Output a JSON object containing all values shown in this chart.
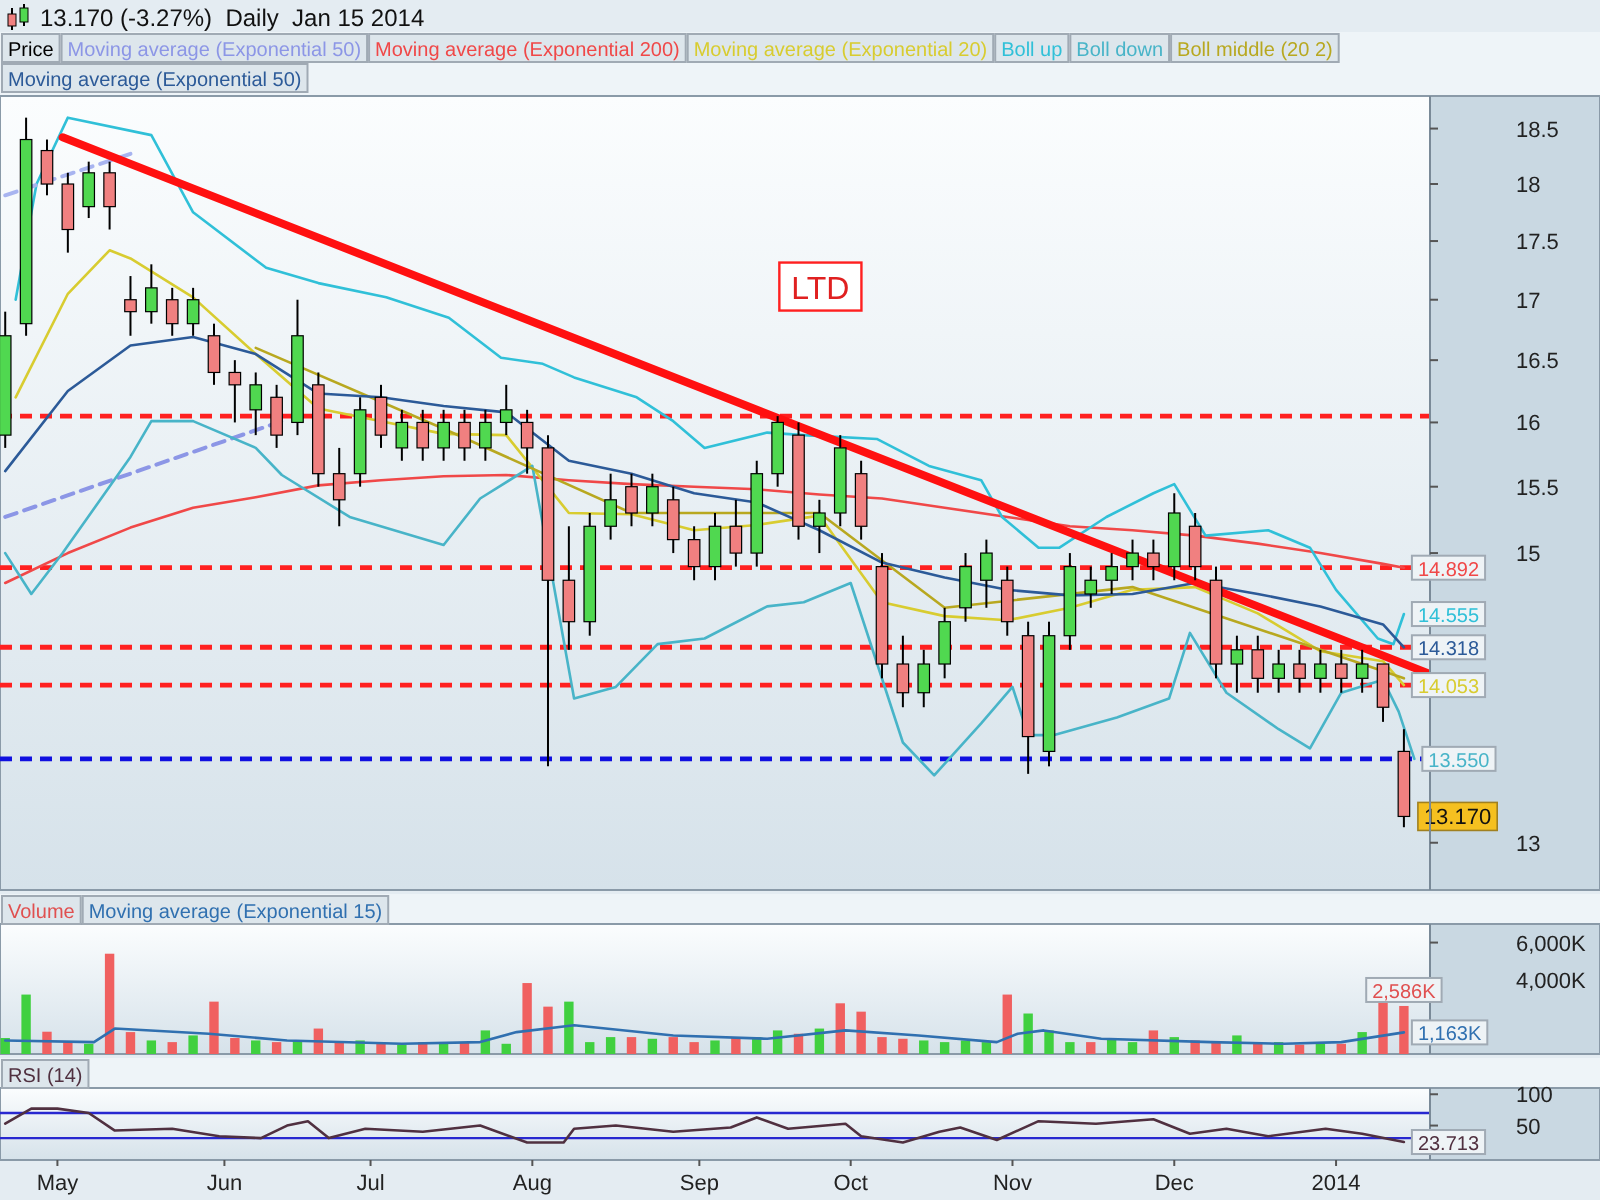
{
  "chart_data": [
    {
      "type": "candlestick",
      "title": "13.170 (-3.27%)  Daily  Jan 15 2014",
      "legend_title": "Price",
      "legend": "top left",
      "log": true,
      "tick_labels": "y",
      "xlim": [
        "2013-04-21",
        "2014-01-20"
      ],
      "ylim": [
        12.7,
        18.8
      ],
      "yticks": [
        13,
        15,
        15.5,
        16,
        16.5,
        17,
        17.5,
        18,
        18.5
      ],
      "x": [
        "2013-04-22",
        "2013-04-26",
        "2013-04-30",
        "2013-05-04",
        "2013-05-08",
        "2013-05-12",
        "2013-05-16",
        "2013-05-20",
        "2013-05-24",
        "2013-05-28",
        "2013-06-01",
        "2013-06-05",
        "2013-06-09",
        "2013-06-13",
        "2013-06-17",
        "2013-06-21",
        "2013-06-25",
        "2013-06-29",
        "2013-07-03",
        "2013-07-07",
        "2013-07-11",
        "2013-07-15",
        "2013-07-19",
        "2013-07-23",
        "2013-07-27",
        "2013-07-31",
        "2013-08-04",
        "2013-08-08",
        "2013-08-12",
        "2013-08-16",
        "2013-08-20",
        "2013-08-24",
        "2013-08-28",
        "2013-09-01",
        "2013-09-05",
        "2013-09-09",
        "2013-09-13",
        "2013-09-17",
        "2013-09-21",
        "2013-09-25",
        "2013-09-29",
        "2013-10-03",
        "2013-10-07",
        "2013-10-11",
        "2013-10-15",
        "2013-10-19",
        "2013-10-23",
        "2013-10-27",
        "2013-10-31",
        "2013-11-04",
        "2013-11-08",
        "2013-11-12",
        "2013-11-16",
        "2013-11-20",
        "2013-11-24",
        "2013-11-28",
        "2013-12-02",
        "2013-12-06",
        "2013-12-10",
        "2013-12-14",
        "2013-12-18",
        "2013-12-22",
        "2013-12-26",
        "2013-12-30",
        "2014-01-03",
        "2014-01-07",
        "2014-01-11",
        "2014-01-15"
      ],
      "ohlc": [
        [
          15.9,
          16.9,
          15.8,
          16.7
        ],
        [
          16.8,
          18.6,
          16.7,
          18.4
        ],
        [
          18.3,
          18.4,
          17.9,
          18.0
        ],
        [
          18.0,
          18.1,
          17.4,
          17.6
        ],
        [
          17.8,
          18.2,
          17.7,
          18.1
        ],
        [
          18.1,
          18.2,
          17.6,
          17.8
        ],
        [
          17.0,
          17.2,
          16.7,
          16.9
        ],
        [
          16.9,
          17.3,
          16.8,
          17.1
        ],
        [
          17.0,
          17.1,
          16.7,
          16.8
        ],
        [
          16.8,
          17.1,
          16.7,
          17.0
        ],
        [
          16.7,
          16.8,
          16.3,
          16.4
        ],
        [
          16.4,
          16.5,
          16.0,
          16.3
        ],
        [
          16.1,
          16.4,
          15.9,
          16.3
        ],
        [
          16.2,
          16.3,
          15.8,
          15.9
        ],
        [
          16.0,
          17.0,
          15.9,
          16.7
        ],
        [
          16.3,
          16.4,
          15.5,
          15.6
        ],
        [
          15.6,
          15.8,
          15.2,
          15.4
        ],
        [
          15.6,
          16.2,
          15.5,
          16.1
        ],
        [
          16.2,
          16.3,
          15.8,
          15.9
        ],
        [
          15.8,
          16.1,
          15.7,
          16.0
        ],
        [
          16.0,
          16.1,
          15.7,
          15.8
        ],
        [
          15.8,
          16.1,
          15.7,
          16.0
        ],
        [
          16.0,
          16.1,
          15.7,
          15.8
        ],
        [
          15.8,
          16.1,
          15.7,
          16.0
        ],
        [
          16.0,
          16.3,
          15.9,
          16.1
        ],
        [
          16.0,
          16.1,
          15.6,
          15.8
        ],
        [
          15.8,
          15.9,
          13.5,
          14.8
        ],
        [
          14.8,
          15.2,
          14.3,
          14.5
        ],
        [
          14.5,
          15.3,
          14.4,
          15.2
        ],
        [
          15.2,
          15.6,
          15.1,
          15.4
        ],
        [
          15.5,
          15.6,
          15.2,
          15.3
        ],
        [
          15.3,
          15.6,
          15.2,
          15.5
        ],
        [
          15.4,
          15.5,
          15.0,
          15.1
        ],
        [
          15.1,
          15.2,
          14.8,
          14.9
        ],
        [
          14.9,
          15.3,
          14.8,
          15.2
        ],
        [
          15.2,
          15.4,
          14.9,
          15.0
        ],
        [
          15.0,
          15.7,
          14.9,
          15.6
        ],
        [
          15.6,
          16.05,
          15.5,
          16.0
        ],
        [
          15.9,
          16.0,
          15.1,
          15.2
        ],
        [
          15.2,
          15.4,
          15.0,
          15.3
        ],
        [
          15.3,
          15.9,
          15.2,
          15.8
        ],
        [
          15.6,
          15.7,
          15.1,
          15.2
        ],
        [
          14.9,
          15.0,
          14.1,
          14.2
        ],
        [
          14.2,
          14.4,
          13.9,
          14.0
        ],
        [
          14.0,
          14.3,
          13.9,
          14.2
        ],
        [
          14.2,
          14.6,
          14.1,
          14.5
        ],
        [
          14.6,
          15.0,
          14.5,
          14.9
        ],
        [
          14.8,
          15.1,
          14.6,
          15.0
        ],
        [
          14.8,
          14.9,
          14.4,
          14.5
        ],
        [
          14.4,
          14.5,
          13.45,
          13.7
        ],
        [
          13.6,
          14.5,
          13.5,
          14.4
        ],
        [
          14.4,
          15.0,
          14.3,
          14.9
        ],
        [
          14.7,
          14.9,
          14.6,
          14.8
        ],
        [
          14.8,
          15.0,
          14.7,
          14.9
        ],
        [
          14.9,
          15.1,
          14.8,
          15.0
        ],
        [
          15.0,
          15.1,
          14.8,
          14.9
        ],
        [
          14.9,
          15.45,
          14.8,
          15.3
        ],
        [
          15.2,
          15.3,
          14.8,
          14.9
        ],
        [
          14.8,
          14.9,
          14.1,
          14.2
        ],
        [
          14.2,
          14.4,
          14.0,
          14.3
        ],
        [
          14.3,
          14.4,
          14.0,
          14.1
        ],
        [
          14.1,
          14.3,
          14.0,
          14.2
        ],
        [
          14.2,
          14.3,
          14.0,
          14.1
        ],
        [
          14.1,
          14.3,
          14.0,
          14.2
        ],
        [
          14.2,
          14.3,
          14.0,
          14.1
        ],
        [
          14.1,
          14.3,
          14.0,
          14.2
        ],
        [
          14.2,
          14.2,
          13.8,
          13.9
        ],
        [
          13.6,
          13.75,
          13.1,
          13.17
        ]
      ],
      "series": [
        {
          "name": "Moving average (Exponential 50)",
          "type": "line",
          "color": "#8c96e6",
          "line_style": "dashed",
          "x": [
            "2013-04-22",
            "2013-06-14"
          ],
          "values": [
            15.27,
            16.01
          ]
        },
        {
          "name": "Moving average (Exponential 200)",
          "type": "line",
          "color": "#f04848",
          "x": [
            "2013-04-22",
            "2013-05-04",
            "2013-05-16",
            "2013-05-28",
            "2013-06-09",
            "2013-06-21",
            "2013-07-03",
            "2013-07-15",
            "2013-07-27",
            "2013-08-08",
            "2013-08-20",
            "2013-09-01",
            "2013-09-13",
            "2013-09-25",
            "2013-10-07",
            "2013-10-19",
            "2013-10-31",
            "2013-11-12",
            "2013-11-24",
            "2013-12-06",
            "2013-12-18",
            "2013-12-30",
            "2014-01-11",
            "2014-01-15"
          ],
          "values": [
            14.78,
            15.0,
            15.19,
            15.34,
            15.42,
            15.51,
            15.55,
            15.58,
            15.59,
            15.55,
            15.52,
            15.5,
            15.48,
            15.44,
            15.41,
            15.34,
            15.27,
            15.2,
            15.17,
            15.13,
            15.07,
            15.0,
            14.92,
            14.892
          ],
          "value_labels": [
            null,
            null,
            null,
            null,
            null,
            null,
            null,
            null,
            null,
            null,
            null,
            null,
            null,
            null,
            null,
            null,
            null,
            null,
            null,
            null,
            null,
            null,
            null,
            "14.892"
          ]
        },
        {
          "name": "Moving average (Exponential 20)",
          "type": "line",
          "color": "#d8cc30",
          "x": [
            "2013-04-24",
            "2013-05-04",
            "2013-05-12",
            "2013-05-16",
            "2013-05-28",
            "2013-06-09",
            "2013-06-21",
            "2013-07-03",
            "2013-07-15",
            "2013-07-27",
            "2013-08-08",
            "2013-08-20",
            "2013-09-01",
            "2013-09-13",
            "2013-09-25",
            "2013-10-07",
            "2013-10-19",
            "2013-10-31",
            "2013-11-12",
            "2013-11-24",
            "2013-12-06",
            "2013-12-18",
            "2013-12-30",
            "2014-01-11",
            "2014-01-15"
          ],
          "values": [
            16.2,
            17.05,
            17.42,
            17.35,
            17.02,
            16.55,
            16.11,
            16.01,
            15.91,
            15.9,
            15.3,
            15.29,
            15.17,
            15.21,
            15.28,
            14.64,
            14.54,
            14.51,
            14.6,
            14.73,
            14.75,
            14.56,
            14.29,
            14.22,
            14.053
          ],
          "value_labels": [
            null,
            null,
            null,
            null,
            null,
            null,
            null,
            null,
            null,
            null,
            null,
            null,
            null,
            null,
            null,
            null,
            null,
            null,
            null,
            null,
            null,
            null,
            null,
            null,
            "14.053"
          ]
        },
        {
          "name": "Boll up",
          "type": "line",
          "color": "#30c0d8",
          "x": [
            "2013-04-24",
            "2013-04-28",
            "2013-05-04",
            "2013-05-20",
            "2013-05-28",
            "2013-06-11",
            "2013-06-21",
            "2013-07-04",
            "2013-07-16",
            "2013-07-26",
            "2013-08-03",
            "2013-08-09",
            "2013-08-21",
            "2013-08-28",
            "2013-09-03",
            "2013-09-15",
            "2013-09-22",
            "2013-10-06",
            "2013-10-16",
            "2013-10-26",
            "2013-10-30",
            "2013-11-06",
            "2013-11-10",
            "2013-11-19",
            "2013-11-28",
            "2013-12-02",
            "2013-12-08",
            "2013-12-20",
            "2013-12-28",
            "2014-01-02",
            "2014-01-10",
            "2014-01-13",
            "2014-01-15"
          ],
          "values": [
            17.0,
            18.0,
            18.6,
            18.44,
            17.75,
            17.27,
            17.14,
            17.02,
            16.85,
            16.52,
            16.47,
            16.36,
            16.2,
            16.01,
            15.8,
            15.92,
            15.9,
            15.87,
            15.66,
            15.55,
            15.27,
            15.04,
            15.04,
            15.27,
            15.45,
            15.52,
            15.13,
            15.17,
            15.04,
            14.73,
            14.38,
            14.34,
            14.555
          ],
          "value_labels": [
            null,
            null,
            null,
            null,
            null,
            null,
            null,
            null,
            null,
            null,
            null,
            null,
            null,
            null,
            null,
            null,
            null,
            null,
            null,
            null,
            null,
            null,
            null,
            null,
            null,
            null,
            null,
            null,
            null,
            null,
            null,
            null,
            "14.555"
          ]
        },
        {
          "name": "Boll down",
          "type": "line",
          "color": "#48b4c8",
          "x": [
            "2013-04-22",
            "2013-04-27",
            "2013-05-03",
            "2013-05-16",
            "2013-05-20",
            "2013-05-28",
            "2013-06-09",
            "2013-06-14",
            "2013-06-27",
            "2013-07-15",
            "2013-07-22",
            "2013-08-01",
            "2013-08-09",
            "2013-08-17",
            "2013-08-25",
            "2013-09-03",
            "2013-09-15",
            "2013-09-22",
            "2013-10-01",
            "2013-10-03",
            "2013-10-11",
            "2013-10-17",
            "2013-10-26",
            "2013-11-01",
            "2013-11-04",
            "2013-11-09",
            "2013-11-21",
            "2013-12-01",
            "2013-12-05",
            "2013-12-12",
            "2013-12-22",
            "2013-12-28",
            "2014-01-03",
            "2014-01-11",
            "2014-01-14",
            "2014-01-17"
          ],
          "values": [
            15.0,
            14.7,
            15.0,
            15.73,
            16.01,
            16.01,
            15.8,
            15.59,
            15.27,
            15.06,
            15.41,
            15.66,
            13.96,
            14.04,
            14.34,
            14.38,
            14.61,
            14.64,
            14.78,
            14.55,
            13.66,
            13.44,
            13.79,
            14.04,
            13.71,
            13.71,
            13.83,
            13.96,
            14.42,
            14.0,
            13.75,
            13.62,
            14.0,
            14.09,
            13.87,
            13.55
          ],
          "value_labels": [
            null,
            null,
            null,
            null,
            null,
            null,
            null,
            null,
            null,
            null,
            null,
            null,
            null,
            null,
            null,
            null,
            null,
            null,
            null,
            null,
            null,
            null,
            null,
            null,
            null,
            null,
            null,
            null,
            null,
            null,
            null,
            null,
            null,
            null,
            null,
            "13.550"
          ]
        },
        {
          "name": "Boll middle (20 2)",
          "type": "line",
          "color": "#b8a820",
          "x": [
            "2013-06-09",
            "2013-07-15",
            "2013-08-20",
            "2013-09-25",
            "2013-10-19",
            "2013-11-24",
            "2013-12-30",
            "2014-01-15"
          ],
          "values": [
            16.6,
            15.95,
            15.3,
            15.3,
            14.6,
            14.75,
            14.3,
            14.1
          ]
        },
        {
          "name": "Moving average (Exponential 50)",
          "type": "line",
          "color": "#2c5a98",
          "x": [
            "2013-04-22",
            "2013-05-04",
            "2013-05-16",
            "2013-05-28",
            "2013-06-09",
            "2013-06-21",
            "2013-07-03",
            "2013-07-15",
            "2013-07-27",
            "2013-08-08",
            "2013-08-20",
            "2013-09-01",
            "2013-09-13",
            "2013-09-25",
            "2013-10-07",
            "2013-10-19",
            "2013-10-31",
            "2013-11-12",
            "2013-11-24",
            "2013-12-06",
            "2013-12-18",
            "2013-12-30",
            "2014-01-11",
            "2014-01-15"
          ],
          "values": [
            15.62,
            16.25,
            16.62,
            16.69,
            16.55,
            16.23,
            16.2,
            16.13,
            16.08,
            15.7,
            15.6,
            15.45,
            15.38,
            15.17,
            14.93,
            14.82,
            14.73,
            14.69,
            14.7,
            14.78,
            14.7,
            14.61,
            14.48,
            14.318
          ],
          "value_labels": [
            null,
            null,
            null,
            null,
            null,
            null,
            null,
            null,
            null,
            null,
            null,
            null,
            null,
            null,
            null,
            null,
            null,
            null,
            null,
            null,
            null,
            null,
            null,
            "14.318"
          ]
        },
        {
          "type": "line",
          "color": "#a8b4f0",
          "line_style": "dashed",
          "x": [
            "2013-04-22",
            "2013-05-16"
          ],
          "values": [
            17.9,
            18.27
          ]
        },
        {
          "type": "line",
          "color": "#ff1010",
          "x": [
            "2013-05-03",
            "2014-01-20"
          ],
          "values": [
            18.42,
            14.13
          ]
        }
      ],
      "ref_lines": [
        {
          "axis": "y",
          "value": 16.05,
          "color": "#ff2020",
          "line_style": "dashed"
        },
        {
          "axis": "y",
          "value": 14.892,
          "color": "#ff2020",
          "line_style": "dashed"
        },
        {
          "axis": "y",
          "value": 14.318,
          "color": "#ff2020",
          "line_style": "dashed"
        },
        {
          "axis": "y",
          "value": 14.053,
          "color": "#ff2020",
          "line_style": "dashed"
        },
        {
          "axis": "y",
          "value": 13.55,
          "color": "#1010e0",
          "line_style": "dashed"
        }
      ],
      "annotations": [
        "LTD",
        {
          "text": "13.170",
          "x": "2014-01-15",
          "y": 13.17
        }
      ]
    },
    {
      "type": "bar",
      "legend": "top left",
      "tick_labels": "y",
      "xlim": [
        "2013-04-21",
        "2014-01-20"
      ],
      "ylim": [
        0,
        7000
      ],
      "yticks": [
        {
          "value": 6000,
          "label": "6,000K"
        },
        {
          "value": 4000,
          "label": "4,000K"
        }
      ],
      "x": [
        "2013-04-22",
        "2013-04-26",
        "2013-04-30",
        "2013-05-04",
        "2013-05-08",
        "2013-05-12",
        "2013-05-16",
        "2013-05-20",
        "2013-05-24",
        "2013-05-28",
        "2013-06-01",
        "2013-06-05",
        "2013-06-09",
        "2013-06-13",
        "2013-06-17",
        "2013-06-21",
        "2013-06-25",
        "2013-06-29",
        "2013-07-03",
        "2013-07-07",
        "2013-07-11",
        "2013-07-15",
        "2013-07-19",
        "2013-07-23",
        "2013-07-27",
        "2013-07-31",
        "2013-08-04",
        "2013-08-08",
        "2013-08-12",
        "2013-08-16",
        "2013-08-20",
        "2013-08-24",
        "2013-08-28",
        "2013-09-01",
        "2013-09-05",
        "2013-09-09",
        "2013-09-13",
        "2013-09-17",
        "2013-09-21",
        "2013-09-25",
        "2013-09-29",
        "2013-10-03",
        "2013-10-07",
        "2013-10-11",
        "2013-10-15",
        "2013-10-19",
        "2013-10-23",
        "2013-10-27",
        "2013-10-31",
        "2013-11-04",
        "2013-11-08",
        "2013-11-12",
        "2013-11-16",
        "2013-11-20",
        "2013-11-24",
        "2013-11-28",
        "2013-12-02",
        "2013-12-06",
        "2013-12-10",
        "2013-12-14",
        "2013-12-18",
        "2013-12-22",
        "2013-12-26",
        "2013-12-30",
        "2014-01-03",
        "2014-01-07",
        "2014-01-11",
        "2014-01-15"
      ],
      "series": [
        {
          "name": "Volume",
          "color": "#e05050",
          "values": [
            860,
            3200,
            1200,
            640,
            550,
            5400,
            1180,
            730,
            640,
            1000,
            2820,
            860,
            730,
            640,
            730,
            1370,
            640,
            730,
            640,
            500,
            640,
            640,
            640,
            1270,
            550,
            3820,
            2550,
            2820,
            640,
            910,
            910,
            820,
            910,
            640,
            730,
            910,
            910,
            1270,
            1090,
            1370,
            2730,
            2280,
            910,
            820,
            730,
            640,
            730,
            640,
            3200,
            2180,
            1270,
            640,
            640,
            820,
            640,
            1270,
            910,
            730,
            640,
            1000,
            640,
            640,
            500,
            550,
            550,
            1180,
            2800,
            2586
          ],
          "colors": [
            "#40d040",
            "#40d040",
            "#f06060",
            "#f06060",
            "#40d040",
            "#f06060",
            "#f06060",
            "#40d040",
            "#f06060",
            "#40d040",
            "#f06060",
            "#f06060",
            "#40d040",
            "#f06060",
            "#40d040",
            "#f06060",
            "#f06060",
            "#40d040",
            "#f06060",
            "#40d040",
            "#f06060",
            "#40d040",
            "#f06060",
            "#40d040",
            "#40d040",
            "#f06060",
            "#f06060",
            "#40d040",
            "#40d040",
            "#40d040",
            "#f06060",
            "#40d040",
            "#f06060",
            "#f06060",
            "#40d040",
            "#f06060",
            "#40d040",
            "#40d040",
            "#f06060",
            "#40d040",
            "#f06060",
            "#f06060",
            "#f06060",
            "#f06060",
            "#40d040",
            "#40d040",
            "#40d040",
            "#40d040",
            "#f06060",
            "#40d040",
            "#40d040",
            "#40d040",
            "#f06060",
            "#40d040",
            "#40d040",
            "#f06060",
            "#40d040",
            "#f06060",
            "#f06060",
            "#40d040",
            "#f06060",
            "#40d040",
            "#f06060",
            "#40d040",
            "#f06060",
            "#40d040",
            "#f06060",
            "#f06060"
          ],
          "value_labels": [
            null,
            null,
            null,
            null,
            null,
            null,
            null,
            null,
            null,
            null,
            null,
            null,
            null,
            null,
            null,
            null,
            null,
            null,
            null,
            null,
            null,
            null,
            null,
            null,
            null,
            null,
            null,
            null,
            null,
            null,
            null,
            null,
            null,
            null,
            null,
            null,
            null,
            null,
            null,
            null,
            null,
            null,
            null,
            null,
            null,
            null,
            null,
            null,
            null,
            null,
            null,
            null,
            null,
            null,
            null,
            null,
            null,
            null,
            null,
            null,
            null,
            null,
            null,
            null,
            null,
            null,
            null,
            "2,586K"
          ]
        },
        {
          "name": "Moving average (Exponential 15)",
          "type": "line",
          "color": "#3070b0",
          "x": [
            "2013-04-22",
            "2013-05-09",
            "2013-05-13",
            "2013-05-31",
            "2013-06-15",
            "2013-07-07",
            "2013-07-22",
            "2013-07-29",
            "2013-08-09",
            "2013-08-28",
            "2013-09-15",
            "2013-09-30",
            "2013-10-14",
            "2013-10-29",
            "2013-11-02",
            "2013-11-07",
            "2013-11-18",
            "2013-12-09",
            "2013-12-23",
            "2014-01-03",
            "2014-01-15"
          ],
          "values": [
            730,
            640,
            1370,
            1090,
            730,
            550,
            640,
            1180,
            1550,
            1000,
            820,
            1270,
            1000,
            640,
            1090,
            1270,
            820,
            640,
            550,
            640,
            1163
          ],
          "value_labels": [
            null,
            null,
            null,
            null,
            null,
            null,
            null,
            null,
            null,
            null,
            null,
            null,
            null,
            null,
            null,
            null,
            null,
            null,
            null,
            null,
            "1,163K"
          ]
        }
      ]
    },
    {
      "type": "line",
      "legend": "top left",
      "xlim": [
        "2013-04-21",
        "2014-01-20"
      ],
      "xticks": [
        {
          "value": "2013-05-02",
          "label": "May"
        },
        {
          "value": "2013-06-03",
          "label": "Jun"
        },
        {
          "value": "2013-07-01",
          "label": "Jul"
        },
        {
          "value": "2013-08-01",
          "label": "Aug"
        },
        {
          "value": "2013-09-02",
          "label": "Sep"
        },
        {
          "value": "2013-10-01",
          "label": "Oct"
        },
        {
          "value": "2013-11-01",
          "label": "Nov"
        },
        {
          "value": "2013-12-02",
          "label": "Dec"
        },
        {
          "value": "2014-01-02",
          "label": "2014"
        }
      ],
      "ylim": [
        -5,
        110
      ],
      "yticks": [
        50,
        100
      ],
      "ref_lines": [
        {
          "axis": "y",
          "value": 70,
          "color": "#2828d0"
        },
        {
          "axis": "y",
          "value": 30,
          "color": "#2828d0"
        }
      ],
      "series": [
        {
          "name": "RSI (14)",
          "color": "#503040",
          "x": [
            "2013-04-22",
            "2013-04-27",
            "2013-05-02",
            "2013-05-08",
            "2013-05-13",
            "2013-05-24",
            "2013-06-02",
            "2013-06-10",
            "2013-06-15",
            "2013-06-19",
            "2013-06-23",
            "2013-06-30",
            "2013-07-11",
            "2013-07-22",
            "2013-07-31",
            "2013-08-07",
            "2013-08-09",
            "2013-08-17",
            "2013-08-28",
            "2013-09-08",
            "2013-09-13",
            "2013-09-19",
            "2013-09-30",
            "2013-10-03",
            "2013-10-11",
            "2013-10-18",
            "2013-10-22",
            "2013-10-29",
            "2013-11-06",
            "2013-11-17",
            "2013-11-28",
            "2013-12-05",
            "2013-12-12",
            "2013-12-20",
            "2013-12-31",
            "2014-01-07",
            "2014-01-15"
          ],
          "values": [
            53,
            77,
            77,
            70,
            42,
            45,
            33,
            30,
            50,
            57,
            30,
            45,
            40,
            50,
            23,
            23,
            45,
            50,
            40,
            47,
            63,
            45,
            53,
            33,
            23,
            40,
            47,
            27,
            57,
            53,
            60,
            37,
            45,
            33,
            45,
            37,
            23.713
          ],
          "value_labels": [
            null,
            null,
            null,
            null,
            null,
            null,
            null,
            null,
            null,
            null,
            null,
            null,
            null,
            null,
            null,
            null,
            null,
            null,
            null,
            null,
            null,
            null,
            null,
            null,
            null,
            null,
            null,
            null,
            null,
            null,
            null,
            null,
            null,
            null,
            null,
            null,
            "23.713"
          ]
        }
      ]
    }
  ]
}
